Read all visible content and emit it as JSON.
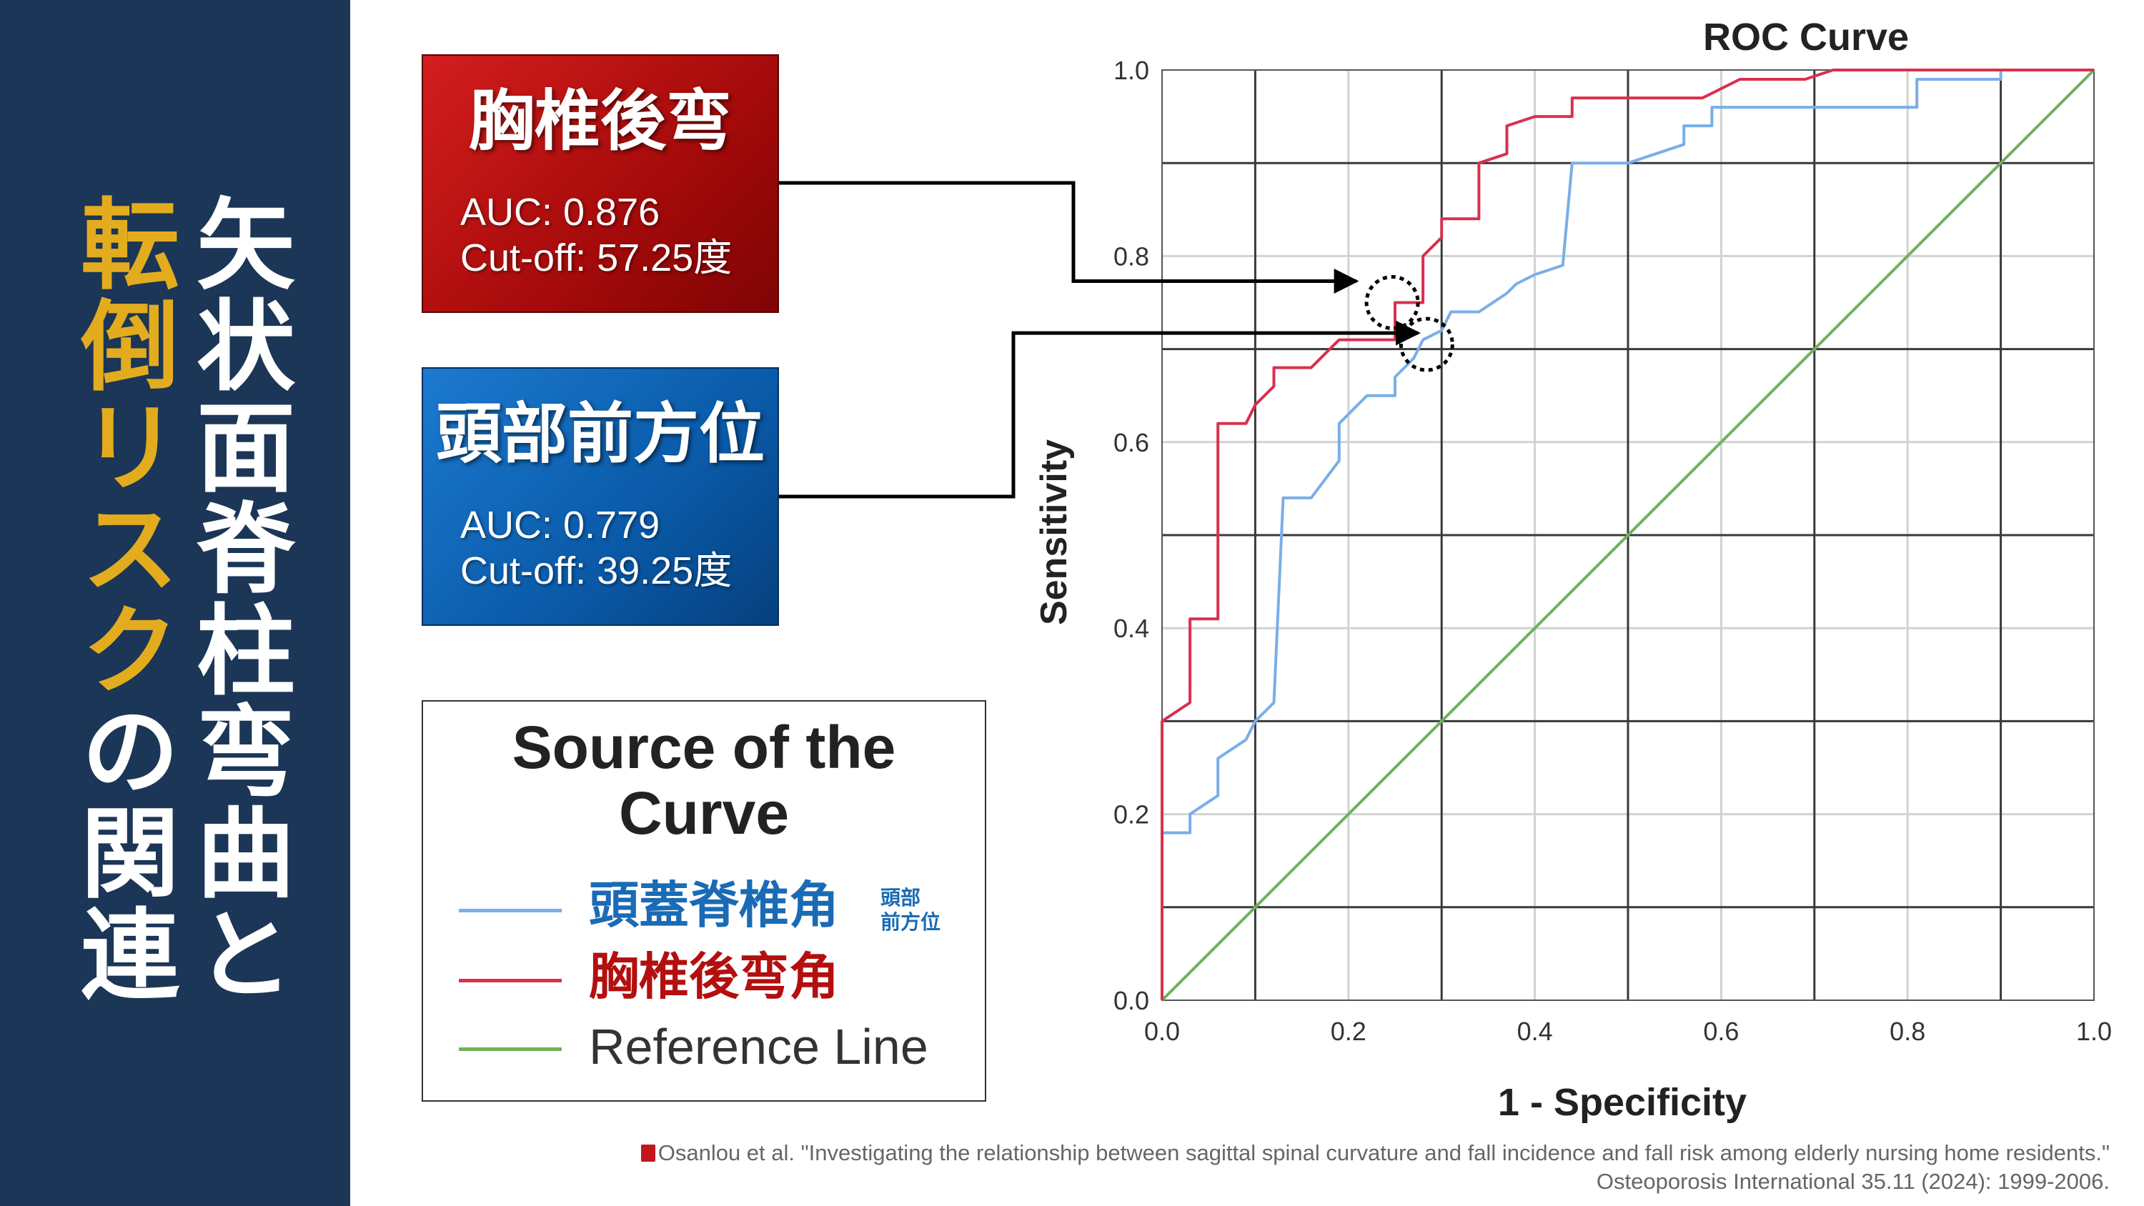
{
  "sidebar": {
    "title_right": "矢状面脊柱弯曲と",
    "title_left_highlight": "転倒リスク",
    "title_left_rest": "の関連",
    "colors": {
      "background": "#1b3656",
      "highlight": "#e3ac1f",
      "text": "#ffffff"
    }
  },
  "cards": {
    "thoracic": {
      "title": "胸椎後弯",
      "auc": "AUC: 0.876",
      "cutoff": "Cut-off: 57.25度",
      "color": "#b50f0f"
    },
    "head": {
      "title": "頭部前方位",
      "auc": "AUC: 0.779",
      "cutoff": "Cut-off: 39.25度",
      "color": "#0a5aa8"
    }
  },
  "legend": {
    "title": "Source of the Curve",
    "items": [
      {
        "label": "頭蓋脊椎角",
        "color": "#7aaee8",
        "text_color": "#1a6bb5"
      },
      {
        "label": "胸椎後弯角",
        "color": "#d9304f",
        "text_color": "#b30f0f"
      },
      {
        "label": "Reference Line",
        "color": "#6db35a",
        "text_color": "#333333"
      }
    ],
    "sub_label_line1": "頭部",
    "sub_label_line2": "前方位"
  },
  "chart_data": {
    "type": "line",
    "title": "ROC Curve",
    "xlabel": "1 - Specificity",
    "ylabel": "Sensitivity",
    "xlim": [
      0,
      1
    ],
    "ylim": [
      0,
      1
    ],
    "xticks": [
      "0.0",
      "0.2",
      "0.4",
      "0.6",
      "0.8",
      "1.0"
    ],
    "yticks": [
      "0.0",
      "0.2",
      "0.4",
      "0.6",
      "0.8",
      "1.0"
    ],
    "grid": true,
    "series": [
      {
        "name": "頭蓋脊椎角",
        "color": "#7aaee8",
        "points": [
          [
            0,
            0
          ],
          [
            0,
            0.18
          ],
          [
            0.03,
            0.18
          ],
          [
            0.03,
            0.2
          ],
          [
            0.06,
            0.22
          ],
          [
            0.06,
            0.26
          ],
          [
            0.09,
            0.28
          ],
          [
            0.1,
            0.3
          ],
          [
            0.12,
            0.32
          ],
          [
            0.13,
            0.54
          ],
          [
            0.16,
            0.54
          ],
          [
            0.19,
            0.58
          ],
          [
            0.19,
            0.62
          ],
          [
            0.21,
            0.64
          ],
          [
            0.22,
            0.65
          ],
          [
            0.25,
            0.65
          ],
          [
            0.25,
            0.67
          ],
          [
            0.27,
            0.69
          ],
          [
            0.28,
            0.71
          ],
          [
            0.3,
            0.72
          ],
          [
            0.31,
            0.74
          ],
          [
            0.34,
            0.74
          ],
          [
            0.37,
            0.76
          ],
          [
            0.38,
            0.77
          ],
          [
            0.4,
            0.78
          ],
          [
            0.43,
            0.79
          ],
          [
            0.44,
            0.9
          ],
          [
            0.47,
            0.9
          ],
          [
            0.5,
            0.9
          ],
          [
            0.53,
            0.91
          ],
          [
            0.56,
            0.92
          ],
          [
            0.56,
            0.94
          ],
          [
            0.59,
            0.94
          ],
          [
            0.59,
            0.96
          ],
          [
            0.62,
            0.96
          ],
          [
            0.72,
            0.96
          ],
          [
            0.81,
            0.96
          ],
          [
            0.81,
            0.99
          ],
          [
            0.9,
            0.99
          ],
          [
            0.9,
            1
          ],
          [
            1,
            1
          ]
        ]
      },
      {
        "name": "胸椎後弯角",
        "color": "#d9304f",
        "points": [
          [
            0,
            0
          ],
          [
            0,
            0.3
          ],
          [
            0.03,
            0.32
          ],
          [
            0.03,
            0.41
          ],
          [
            0.06,
            0.41
          ],
          [
            0.06,
            0.62
          ],
          [
            0.09,
            0.62
          ],
          [
            0.1,
            0.64
          ],
          [
            0.12,
            0.66
          ],
          [
            0.12,
            0.68
          ],
          [
            0.16,
            0.68
          ],
          [
            0.19,
            0.71
          ],
          [
            0.25,
            0.71
          ],
          [
            0.25,
            0.75
          ],
          [
            0.28,
            0.75
          ],
          [
            0.28,
            0.8
          ],
          [
            0.3,
            0.82
          ],
          [
            0.3,
            0.84
          ],
          [
            0.34,
            0.84
          ],
          [
            0.34,
            0.9
          ],
          [
            0.37,
            0.91
          ],
          [
            0.37,
            0.94
          ],
          [
            0.4,
            0.95
          ],
          [
            0.44,
            0.95
          ],
          [
            0.44,
            0.97
          ],
          [
            0.5,
            0.97
          ],
          [
            0.58,
            0.97
          ],
          [
            0.62,
            0.99
          ],
          [
            0.69,
            0.99
          ],
          [
            0.72,
            1
          ],
          [
            1,
            1
          ]
        ]
      },
      {
        "name": "Reference Line",
        "color": "#6db35a",
        "points": [
          [
            0,
            0
          ],
          [
            1,
            1
          ]
        ]
      }
    ],
    "markers": [
      {
        "target": "thoracic",
        "x": 0.247,
        "y": 0.75
      },
      {
        "target": "head",
        "x": 0.284,
        "y": 0.705
      }
    ]
  },
  "citation": {
    "line1": "Osanlou et al. \"Investigating the relationship between sagittal spinal curvature and fall incidence and fall risk among elderly nursing home residents.\"",
    "line2": "Osteoporosis International 35.11 (2024): 1999-2006."
  }
}
